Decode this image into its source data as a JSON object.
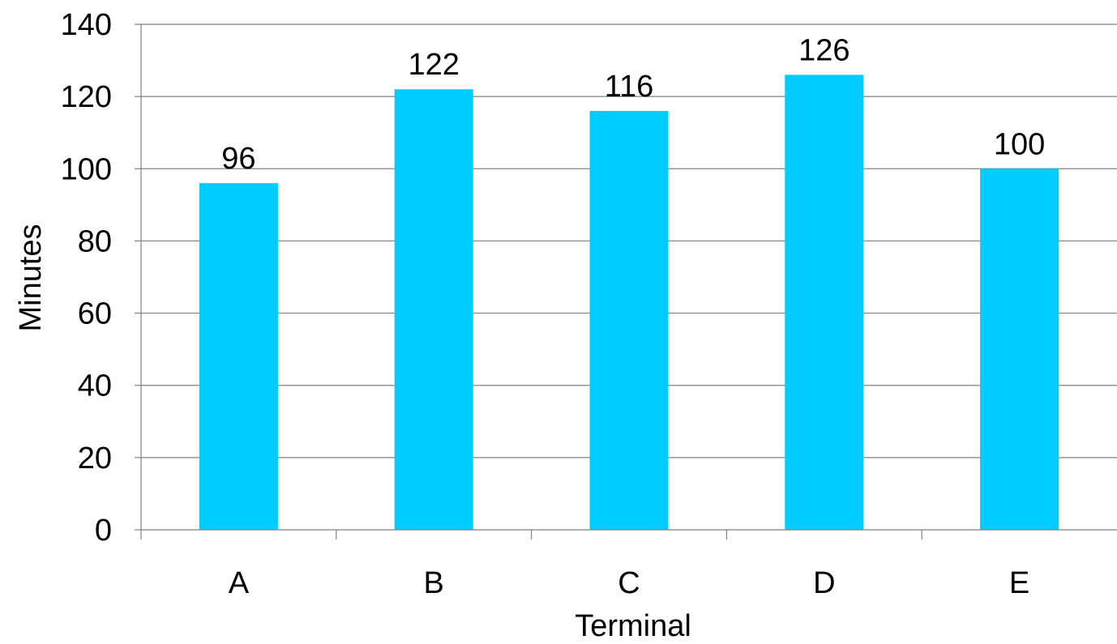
{
  "chart_data": {
    "type": "bar",
    "categories": [
      "A",
      "B",
      "C",
      "D",
      "E"
    ],
    "values": [
      96,
      122,
      116,
      126,
      100
    ],
    "data_labels": [
      "96",
      "122",
      "116",
      "126",
      "100"
    ],
    "title": "",
    "xlabel": "Terminal",
    "ylabel": "Minutes",
    "ylim": [
      0,
      140
    ],
    "yticks": [
      0,
      20,
      40,
      60,
      80,
      100,
      120,
      140
    ],
    "ytick_labels": [
      "0",
      "20",
      "40",
      "60",
      "80",
      "100",
      "120",
      "140"
    ],
    "grid": "horizontal",
    "legend": "none",
    "colors": {
      "bar": "#00CCFF",
      "grid": "#808080",
      "axis": "#808080"
    }
  }
}
